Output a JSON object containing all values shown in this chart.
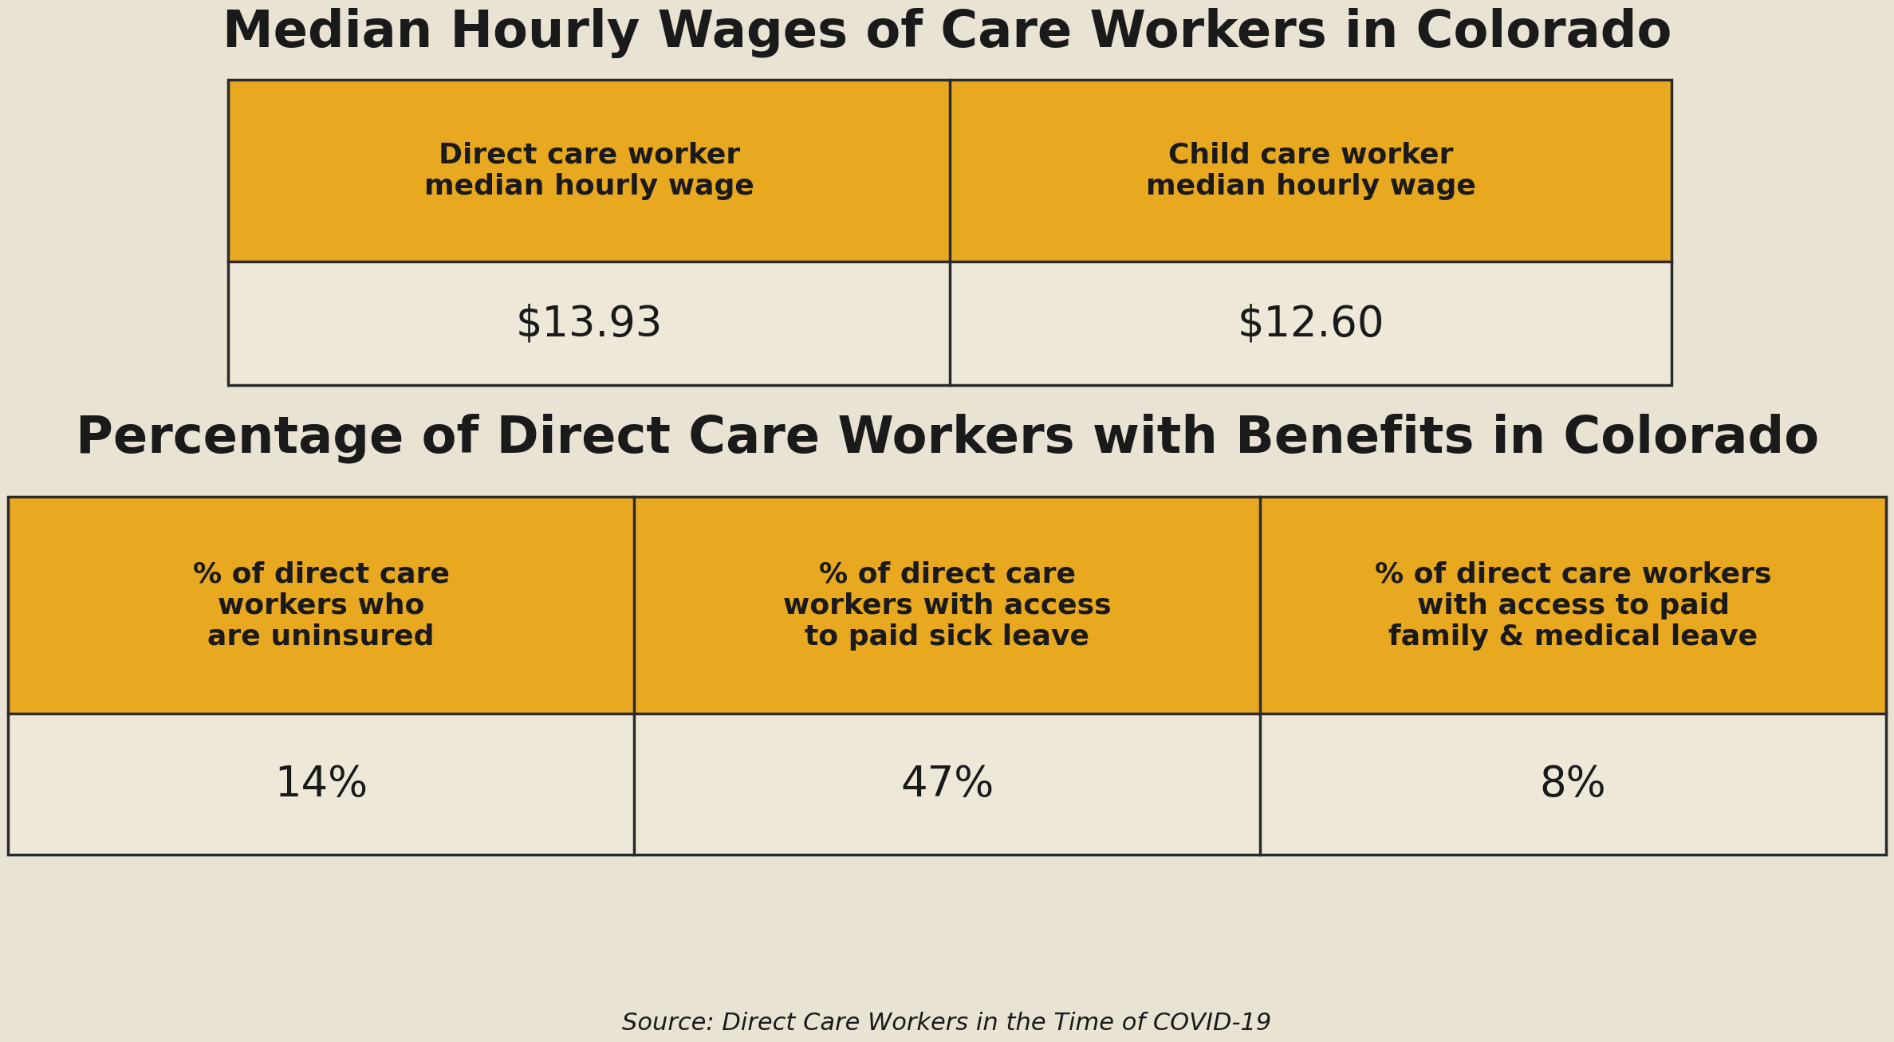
{
  "background_color": "#e8e3d3",
  "golden_color": "#e8a820",
  "border_color": "#2a2a2a",
  "text_dark": "#1a1a1a",
  "white_cell": "#ede8d8",
  "title1": "Median Hourly Wages of Care Workers in Colorado",
  "title2": "Percentage of Direct Care Workers with Benefits in Colorado",
  "source": "Source: Direct Care Workers in the Time of COVID-19",
  "wage_headers": [
    "Direct care worker\nmedian hourly wage",
    "Child care worker\nmedian hourly wage"
  ],
  "wage_values": [
    "$13.93",
    "$12.60"
  ],
  "benefits_headers": [
    "% of direct care\nworkers who\nare uninsured",
    "% of direct care\nworkers with access\nto paid sick leave",
    "% of direct care workers\nwith access to paid\nfamily & medical leave"
  ],
  "benefits_values": [
    "14%",
    "47%",
    "8%"
  ],
  "title1_fontsize": 46,
  "title2_fontsize": 46,
  "header_fontsize": 26,
  "value_fontsize": 38,
  "source_fontsize": 22
}
